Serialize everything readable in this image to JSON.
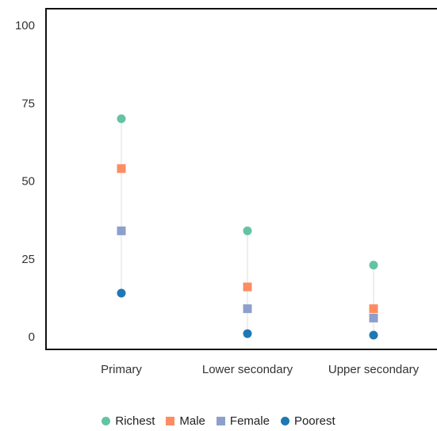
{
  "chart_data": {
    "type": "scatter",
    "title": "",
    "xlabel": "",
    "ylabel": "",
    "ylim": [
      0,
      100
    ],
    "yticks": [
      0,
      25,
      50,
      75,
      100
    ],
    "categories": [
      "Primary",
      "Lower secondary",
      "Upper secondary"
    ],
    "series": [
      {
        "name": "Richest",
        "marker": "circle",
        "color": "#66c2a5",
        "values": [
          70,
          34,
          23
        ]
      },
      {
        "name": "Male",
        "marker": "square",
        "color": "#fc8d62",
        "values": [
          54,
          16,
          9
        ]
      },
      {
        "name": "Female",
        "marker": "square",
        "color": "#8da0cb",
        "values": [
          34,
          9,
          6
        ]
      },
      {
        "name": "Poorest",
        "marker": "circle",
        "color": "#1f78b4",
        "values": [
          14,
          1,
          0.5
        ]
      }
    ],
    "connector_color": "#dddddd",
    "legend_position": "bottom",
    "grid": false
  }
}
